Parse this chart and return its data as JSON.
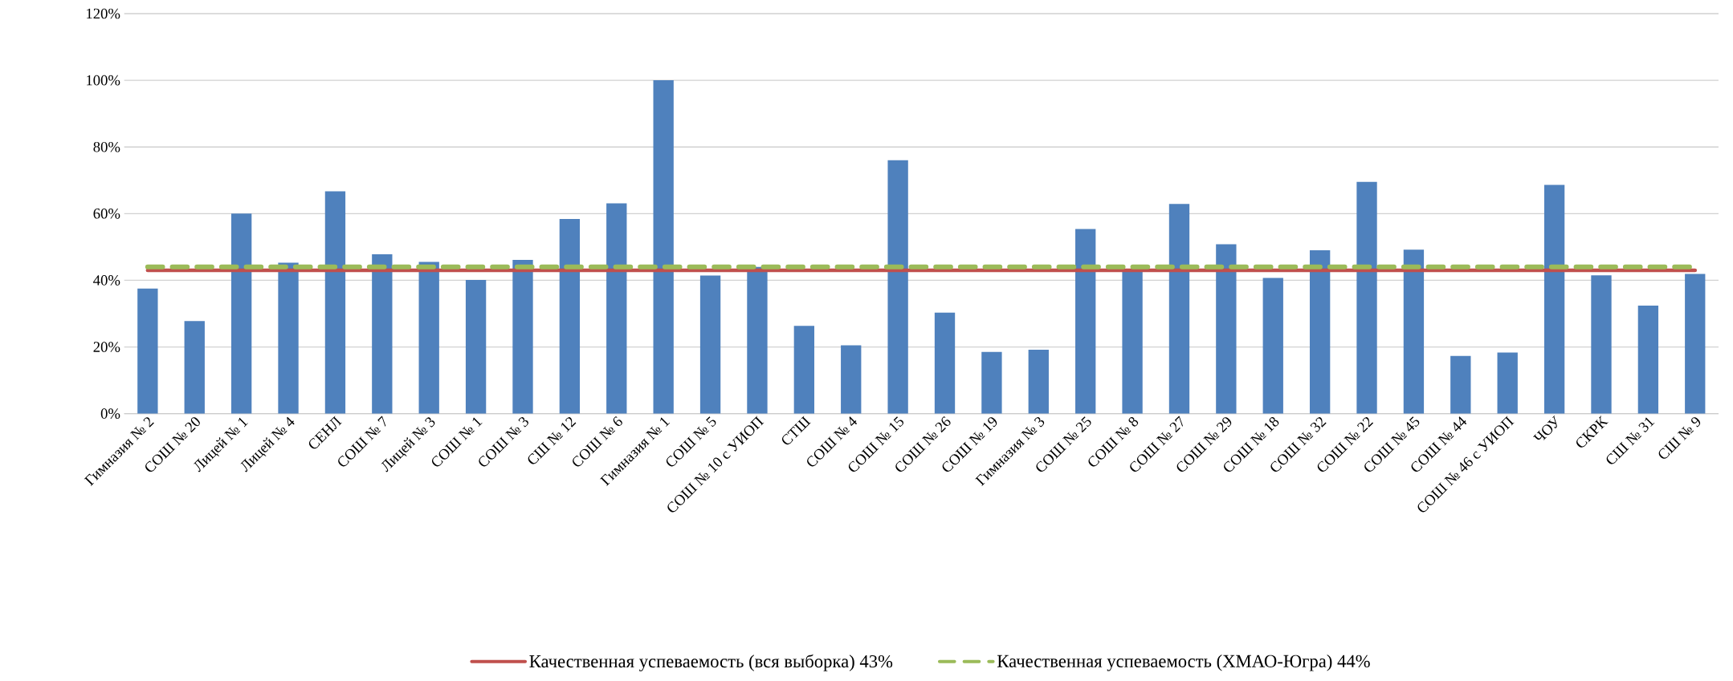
{
  "chart_data": {
    "type": "bar",
    "categories": [
      "Гимназия № 2",
      "СОШ № 20",
      "Лицей № 1",
      "Лицей № 4",
      "СЕНЛ",
      "СОШ № 7",
      "Лицей № 3",
      "СОШ № 1",
      "СОШ № 3",
      "СШ № 12",
      "СОШ № 6",
      "Гимназия № 1",
      "СОШ № 5",
      "СОШ № 10 с УИОП",
      "СТШ",
      "СОШ № 4",
      "СОШ № 15",
      "СОШ № 26",
      "СОШ № 19",
      "Гимназия № 3",
      "СОШ № 25",
      "СОШ № 8",
      "СОШ № 27",
      "СОШ № 29",
      "СОШ № 18",
      "СОШ № 32",
      "СОШ № 22",
      "СОШ № 45",
      "СОШ № 44",
      "СОШ № 46 с УИОП",
      "ЧОУ",
      "СКРК",
      "СШ № 31",
      "СШ № 9"
    ],
    "series": [
      {
        "color": "#4f81bd",
        "values": [
          37.5,
          27.8,
          60,
          45.3,
          66.7,
          47.8,
          45.5,
          40.1,
          46.1,
          58.4,
          63.1,
          100,
          41.4,
          44,
          26.3,
          20.5,
          76,
          30.3,
          18.5,
          19.2,
          55.4,
          43,
          62.9,
          50.8,
          40.7,
          49,
          69.5,
          49.2,
          17.3,
          18.3,
          68.6,
          41.5,
          32.4,
          41.9
        ]
      },
      {
        "type": "line",
        "name": "Качественная успеваемость (вся выборка) 43%",
        "color": "#c0504d",
        "line_style": "solid",
        "values": [
          43,
          43,
          43,
          43,
          43,
          43,
          43,
          43,
          43,
          43,
          43,
          43,
          43,
          43,
          43,
          43,
          43,
          43,
          43,
          43,
          43,
          43,
          43,
          43,
          43,
          43,
          43,
          43,
          43,
          43,
          43,
          43,
          43,
          43
        ]
      },
      {
        "type": "line",
        "name": "Качественная успеваемость (ХМАО-Югра) 44%",
        "color": "#9bbb59",
        "line_style": "dashed",
        "values": [
          44,
          44,
          44,
          44,
          44,
          44,
          44,
          44,
          44,
          44,
          44,
          44,
          44,
          44,
          44,
          44,
          44,
          44,
          44,
          44,
          44,
          44,
          44,
          44,
          44,
          44,
          44,
          44,
          44,
          44,
          44,
          44,
          44,
          44
        ]
      }
    ],
    "ylim": [
      0,
      120
    ],
    "yticks": [
      {
        "value": 0,
        "label": "0%"
      },
      {
        "value": 20,
        "label": "20%"
      },
      {
        "value": 40,
        "label": "40%"
      },
      {
        "value": 60,
        "label": "60%"
      },
      {
        "value": 80,
        "label": "80%"
      },
      {
        "value": 100,
        "label": "100%"
      },
      {
        "value": 120,
        "label": "120%"
      }
    ],
    "grid": "y",
    "legend": "bottom"
  }
}
